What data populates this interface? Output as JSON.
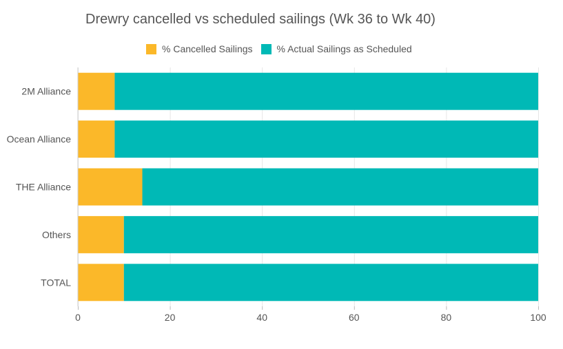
{
  "chart_data": {
    "type": "bar",
    "orientation": "horizontal",
    "stacked": true,
    "title": "Drewry cancelled vs scheduled sailings (Wk 36 to Wk 40)",
    "categories": [
      "2M Alliance",
      "Ocean Alliance",
      "THE Alliance",
      "Others",
      "TOTAL"
    ],
    "series": [
      {
        "name": "% Cancelled Sailings",
        "color": "#fbb829",
        "values": [
          8,
          8,
          14,
          10,
          10
        ]
      },
      {
        "name": "% Actual Sailings as Scheduled",
        "color": "#00b9b6",
        "values": [
          92,
          92,
          86,
          90,
          90
        ]
      }
    ],
    "xlim": [
      0,
      100
    ],
    "xticks": [
      0,
      20,
      40,
      60,
      80,
      100
    ],
    "xticklabels": [
      "0",
      "20",
      "40",
      "60",
      "80",
      "100"
    ],
    "xlabel": "",
    "ylabel": "",
    "grid": true,
    "legend_position": "top-center"
  }
}
